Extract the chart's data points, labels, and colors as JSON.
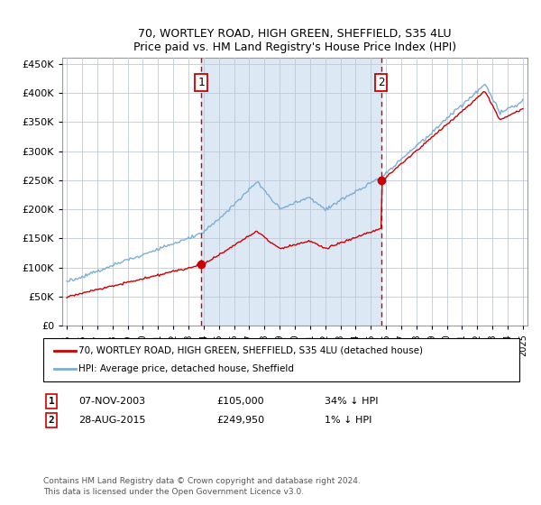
{
  "title1": "70, WORTLEY ROAD, HIGH GREEN, SHEFFIELD, S35 4LU",
  "title2": "Price paid vs. HM Land Registry's House Price Index (HPI)",
  "ylim": [
    0,
    460000
  ],
  "yticks": [
    0,
    50000,
    100000,
    150000,
    200000,
    250000,
    300000,
    350000,
    400000,
    450000
  ],
  "xlim_start": 1994.7,
  "xlim_end": 2025.3,
  "purchase1_year": 2003.85,
  "purchase1_price": 105000,
  "purchase2_year": 2015.67,
  "purchase2_price": 249950,
  "legend_label1": "70, WORTLEY ROAD, HIGH GREEN, SHEFFIELD, S35 4LU (detached house)",
  "legend_label2": "HPI: Average price, detached house, Sheffield",
  "annotation1_date": "07-NOV-2003",
  "annotation1_price": "£105,000",
  "annotation1_hpi": "34% ↓ HPI",
  "annotation2_date": "28-AUG-2015",
  "annotation2_price": "£249,950",
  "annotation2_hpi": "1% ↓ HPI",
  "footnote1": "Contains HM Land Registry data © Crown copyright and database right 2024.",
  "footnote2": "This data is licensed under the Open Government Licence v3.0.",
  "bg_color": "#dde8f5",
  "shade_color": "#dde8f5",
  "hpi_color": "#7bafd4",
  "price_color": "#cc0000",
  "vline_color": "#cc0000",
  "marker1_label": "1",
  "marker2_label": "2",
  "grid_color": "#c0c8d8"
}
